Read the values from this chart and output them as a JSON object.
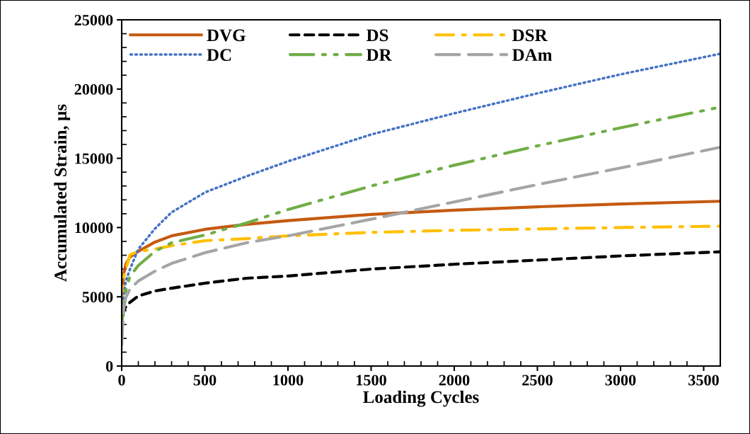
{
  "chart_data": {
    "type": "line",
    "xlabel": "Loading Cycles",
    "ylabel": "Accumulated Strain, µs",
    "x": [
      0,
      10,
      25,
      50,
      100,
      200,
      300,
      500,
      750,
      1000,
      1500,
      2000,
      2500,
      3000,
      3600
    ],
    "xlim": [
      0,
      3600
    ],
    "xticks": [
      0,
      500,
      1000,
      1500,
      2000,
      2500,
      3000,
      3500
    ],
    "ylim": [
      0,
      25000
    ],
    "yticks": [
      0,
      5000,
      10000,
      15000,
      20000,
      25000
    ],
    "grid": false,
    "legend": "top left",
    "marker": "none",
    "series": [
      {
        "name": "DVG",
        "color": "#c55a11",
        "line_style": "solid",
        "values": [
          4450,
          6500,
          7360,
          7870,
          8280,
          8950,
          9400,
          9870,
          10230,
          10500,
          10950,
          11250,
          11500,
          11700,
          11900
        ]
      },
      {
        "name": "DS",
        "color": "#000000",
        "line_style": "dashed",
        "values": [
          2600,
          3940,
          4290,
          4600,
          5060,
          5420,
          5620,
          5980,
          6340,
          6500,
          7000,
          7350,
          7650,
          7950,
          8250
        ]
      },
      {
        "name": "DSR",
        "color": "#ffc000",
        "line_style": "dashdot",
        "values": [
          4500,
          6340,
          7000,
          8030,
          8280,
          8440,
          8690,
          9050,
          9200,
          9400,
          9650,
          9800,
          9900,
          10000,
          10100
        ]
      },
      {
        "name": "DC",
        "color": "#4472c4",
        "line_style": "dotted",
        "values": [
          3430,
          4960,
          6140,
          7000,
          8440,
          9920,
          11100,
          12530,
          13700,
          14780,
          16720,
          18250,
          19690,
          21060,
          22550
        ]
      },
      {
        "name": "DR",
        "color": "#70ad47",
        "line_style": "dashdotdot",
        "values": [
          3000,
          4090,
          5470,
          6490,
          7260,
          8280,
          8900,
          9460,
          10330,
          11300,
          13000,
          14500,
          15900,
          17200,
          18700
        ]
      },
      {
        "name": "DAm",
        "color": "#a5a5a5",
        "line_style": "longdash",
        "values": [
          1500,
          3940,
          4960,
          5570,
          6140,
          6850,
          7410,
          8180,
          8900,
          9400,
          10600,
          11850,
          13100,
          14300,
          15800
        ]
      }
    ]
  }
}
